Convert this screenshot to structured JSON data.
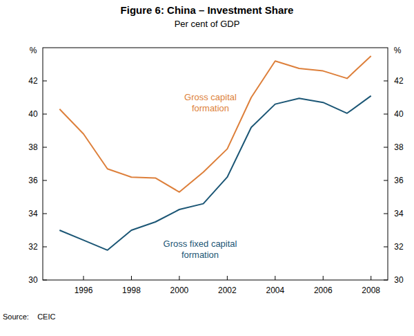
{
  "chart_data": {
    "type": "line",
    "title": "Figure 6: China – Investment Share",
    "subtitle": "Per cent of GDP",
    "y_label": "%",
    "y2_label": "%",
    "source": "Source:    CEIC",
    "x": [
      1995,
      1996,
      1997,
      1998,
      1999,
      2000,
      2001,
      2002,
      2003,
      2004,
      2005,
      2006,
      2007,
      2008
    ],
    "series": [
      {
        "name": "Gross capital formation",
        "color": "#dd7f3a",
        "values": [
          40.3,
          38.8,
          36.7,
          36.2,
          36.15,
          35.3,
          36.5,
          37.9,
          41.0,
          43.2,
          42.75,
          42.6,
          42.15,
          43.5
        ]
      },
      {
        "name": "Gross fixed capital formation",
        "color": "#1b5675",
        "values": [
          33.0,
          32.4,
          31.8,
          33.0,
          33.5,
          34.25,
          34.6,
          36.2,
          39.2,
          40.6,
          40.95,
          40.7,
          40.05,
          41.1
        ]
      }
    ],
    "xlim": [
      1994.3,
      2008.7
    ],
    "xticks": [
      1996,
      1998,
      2000,
      2002,
      2004,
      2006,
      2008
    ],
    "ylim": [
      30,
      44
    ],
    "yticks": [
      30,
      32,
      34,
      36,
      38,
      40,
      42
    ],
    "y2lim": [
      30,
      44
    ],
    "y2ticks": [
      30,
      32,
      34,
      36,
      38,
      40,
      42
    ],
    "grid": false
  }
}
